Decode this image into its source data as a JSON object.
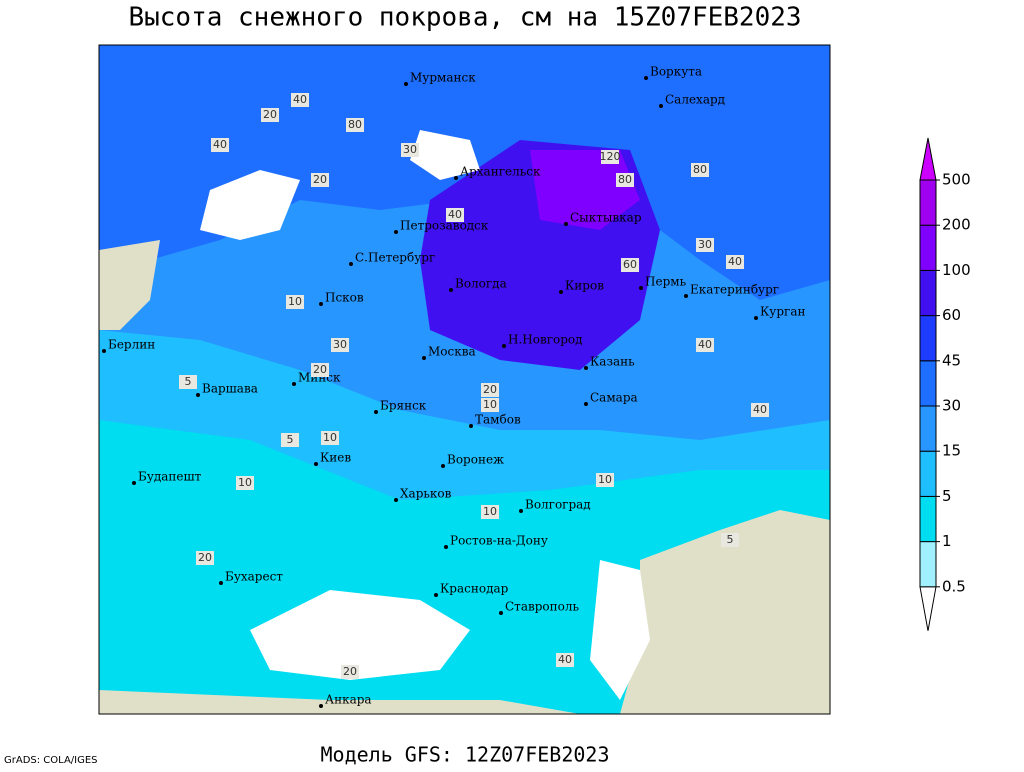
{
  "title": "Высота снежного покрова, см на 15Z07FEB2023",
  "subtitle": "Модель GFS: 12Z07FEB2023",
  "credit": "GrADS: COLA/IGES",
  "cities": [
    "Мурманск",
    "Архангельск",
    "Воркута",
    "Салехард",
    "Петрозаводск",
    "С.Петербург",
    "Сыктывкар",
    "Вологда",
    "Киров",
    "Пермь",
    "Екатеринбург",
    "Курган",
    "Псков",
    "Берлин",
    "Москва",
    "Н.Новгород",
    "Казань",
    "Варшава",
    "Минск",
    "Самара",
    "Брянск",
    "Тамбов",
    "Киев",
    "Воронеж",
    "Будапешт",
    "Харьков",
    "Волгоград",
    "Ростов-на-Дону",
    "Бухарест",
    "Краснодар",
    "Ставрополь",
    "Анкара"
  ],
  "contour_labels": [
    40,
    20,
    40,
    80,
    30,
    20,
    40,
    120,
    80,
    80,
    60,
    40,
    30,
    10,
    30,
    20,
    10,
    5,
    10,
    5,
    10,
    10,
    5,
    10,
    40,
    20,
    20,
    20,
    40,
    40
  ],
  "colorbar": {
    "levels": [
      0.5,
      1,
      5,
      15,
      30,
      45,
      60,
      100,
      200,
      500
    ],
    "colors": [
      "#ffffff",
      "#a0f0ff",
      "#00dcf0",
      "#1ebeff",
      "#2896ff",
      "#1e6eff",
      "#1e3cff",
      "#4010f0",
      "#8000ff",
      "#a000f0",
      "#cc00ff"
    ]
  }
}
